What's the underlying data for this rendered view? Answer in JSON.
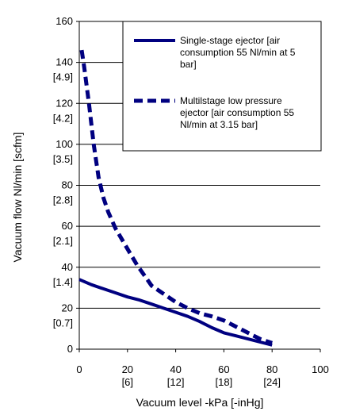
{
  "chart_data": {
    "type": "line",
    "xlabel": "Vacuum level -kPa [-inHg]",
    "ylabel": "Vacuum flow  Nl/min  [scfm]",
    "xlim": [
      0,
      100
    ],
    "ylim": [
      0,
      160
    ],
    "grid": "horizontal",
    "legend_position": "top-right",
    "x_ticks": [
      {
        "primary": "0",
        "secondary": ""
      },
      {
        "primary": "20",
        "secondary": "[6]"
      },
      {
        "primary": "40",
        "secondary": "[12]"
      },
      {
        "primary": "60",
        "secondary": "[18]"
      },
      {
        "primary": "80",
        "secondary": "[24]"
      },
      {
        "primary": "100",
        "secondary": ""
      }
    ],
    "y_ticks": [
      {
        "primary": "0",
        "secondary": ""
      },
      {
        "primary": "20",
        "secondary": "[0.7]"
      },
      {
        "primary": "40",
        "secondary": "[1.4]"
      },
      {
        "primary": "60",
        "secondary": "[2.1]"
      },
      {
        "primary": "80",
        "secondary": "[2.8]"
      },
      {
        "primary": "100",
        "secondary": "[3.5]"
      },
      {
        "primary": "120",
        "secondary": "[4.2]"
      },
      {
        "primary": "140",
        "secondary": "[4.9]"
      },
      {
        "primary": "160",
        "secondary": ""
      }
    ],
    "series": [
      {
        "name": "Single-stage ejector [air consumption 55 Nl/min at 5 bar]",
        "style": "solid",
        "color": "#000080",
        "x": [
          0,
          5,
          10,
          15,
          20,
          25,
          30,
          35,
          40,
          45,
          50,
          55,
          60,
          65,
          70,
          75,
          80
        ],
        "y": [
          34,
          31.5,
          29.5,
          27.5,
          25.5,
          24,
          22,
          20,
          18,
          16,
          13.5,
          10.5,
          8,
          6.5,
          5,
          3.5,
          2
        ]
      },
      {
        "name": "Multilstage low pressure ejector [air consumption 55 Nl/min at 3.15 bar]",
        "style": "dashed",
        "color": "#000080",
        "x": [
          1,
          2,
          4,
          6,
          8,
          10,
          12,
          15,
          18,
          21,
          24,
          27,
          30,
          35,
          40,
          45,
          50,
          55,
          60,
          65,
          70,
          75,
          80
        ],
        "y": [
          146,
          138,
          120,
          100,
          84,
          74,
          67,
          59,
          53,
          47,
          41,
          36,
          31,
          27,
          23,
          20,
          17.5,
          16,
          14,
          11,
          8,
          5,
          3
        ]
      }
    ]
  }
}
